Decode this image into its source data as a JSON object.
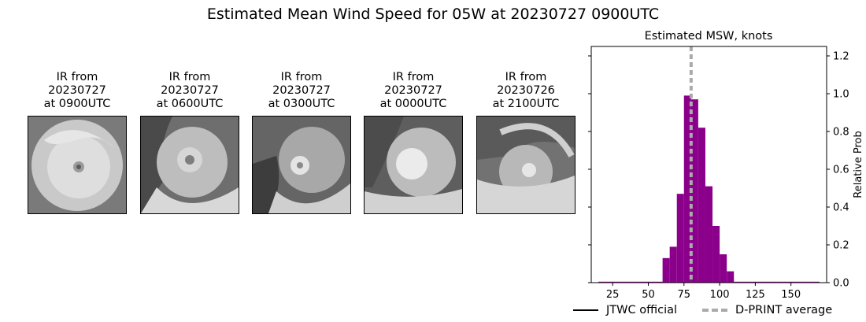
{
  "figure": {
    "title": "Estimated Mean Wind Speed for 05W at 20230727 0900UTC"
  },
  "ir_panels": [
    {
      "label": "IR from\n20230727\nat 0900UTC"
    },
    {
      "label": "IR from\n20230727\nat 0600UTC"
    },
    {
      "label": "IR from\n20230727\nat 0300UTC"
    },
    {
      "label": "IR from\n20230727\nat 0000UTC"
    },
    {
      "label": "IR from\n20230726\nat 2100UTC"
    }
  ],
  "chart_data": {
    "type": "bar",
    "title": "Estimated MSW, knots",
    "xlabel": "",
    "ylabel": "Relative Prob",
    "xlim": [
      10,
      175
    ],
    "ylim": [
      0,
      1.25
    ],
    "xticks": [
      25,
      50,
      75,
      100,
      125,
      150
    ],
    "yticks": [
      0.0,
      0.2,
      0.4,
      0.6,
      0.8,
      1.0,
      1.2
    ],
    "bin_width": 5,
    "bin_starts": [
      15,
      20,
      25,
      30,
      35,
      40,
      45,
      50,
      55,
      60,
      65,
      70,
      75,
      80,
      85,
      90,
      95,
      100,
      105,
      110,
      115,
      120,
      125,
      130,
      135,
      140,
      145,
      150,
      155,
      160,
      165
    ],
    "values": [
      0.005,
      0.005,
      0.005,
      0.005,
      0.005,
      0.005,
      0.005,
      0.005,
      0.005,
      0.13,
      0.19,
      0.47,
      0.99,
      0.97,
      0.82,
      0.51,
      0.3,
      0.15,
      0.06,
      0.005,
      0.005,
      0.005,
      0.005,
      0.005,
      0.005,
      0.005,
      0.005,
      0.005,
      0.005,
      0.005,
      0.005
    ],
    "bar_color": "#8b008b",
    "dprint_average": 80,
    "dprint_color": "#aaaaaa",
    "jtwc_color": "#000000",
    "legend": {
      "jtwc_label": "JTWC official",
      "dprint_label": "D-PRINT average",
      "placement": "bottom"
    }
  }
}
